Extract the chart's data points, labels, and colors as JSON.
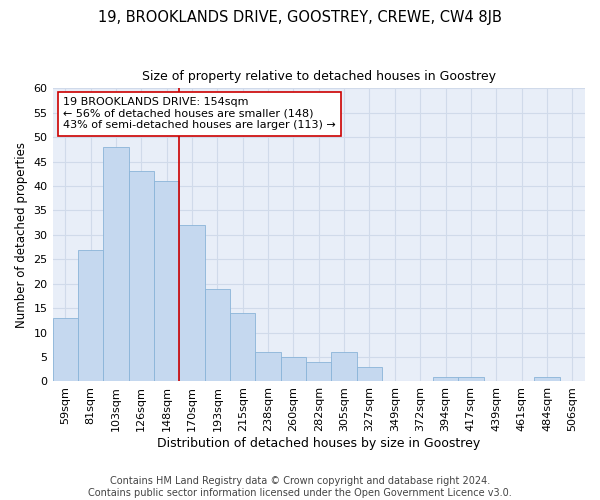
{
  "title": "19, BROOKLANDS DRIVE, GOOSTREY, CREWE, CW4 8JB",
  "subtitle": "Size of property relative to detached houses in Goostrey",
  "xlabel": "Distribution of detached houses by size in Goostrey",
  "ylabel": "Number of detached properties",
  "categories": [
    "59sqm",
    "81sqm",
    "103sqm",
    "126sqm",
    "148sqm",
    "170sqm",
    "193sqm",
    "215sqm",
    "238sqm",
    "260sqm",
    "282sqm",
    "305sqm",
    "327sqm",
    "349sqm",
    "372sqm",
    "394sqm",
    "417sqm",
    "439sqm",
    "461sqm",
    "484sqm",
    "506sqm"
  ],
  "values": [
    13,
    27,
    48,
    43,
    41,
    32,
    19,
    14,
    6,
    5,
    4,
    6,
    3,
    0,
    0,
    1,
    1,
    0,
    0,
    1,
    0
  ],
  "bar_color": "#c5d8ef",
  "bar_edgecolor": "#8ab4d8",
  "vline_x": 4.5,
  "vline_color": "#cc0000",
  "annotation_lines": [
    "19 BROOKLANDS DRIVE: 154sqm",
    "← 56% of detached houses are smaller (148)",
    "43% of semi-detached houses are larger (113) →"
  ],
  "annotation_box_edgecolor": "#cc0000",
  "ylim": [
    0,
    60
  ],
  "yticks": [
    0,
    5,
    10,
    15,
    20,
    25,
    30,
    35,
    40,
    45,
    50,
    55,
    60
  ],
  "grid_color": "#d0daea",
  "background_color": "#e8eef8",
  "footer": "Contains HM Land Registry data © Crown copyright and database right 2024.\nContains public sector information licensed under the Open Government Licence v3.0.",
  "title_fontsize": 10.5,
  "subtitle_fontsize": 9,
  "xlabel_fontsize": 9,
  "ylabel_fontsize": 8.5,
  "tick_fontsize": 8,
  "footer_fontsize": 7,
  "annotation_fontsize": 8
}
